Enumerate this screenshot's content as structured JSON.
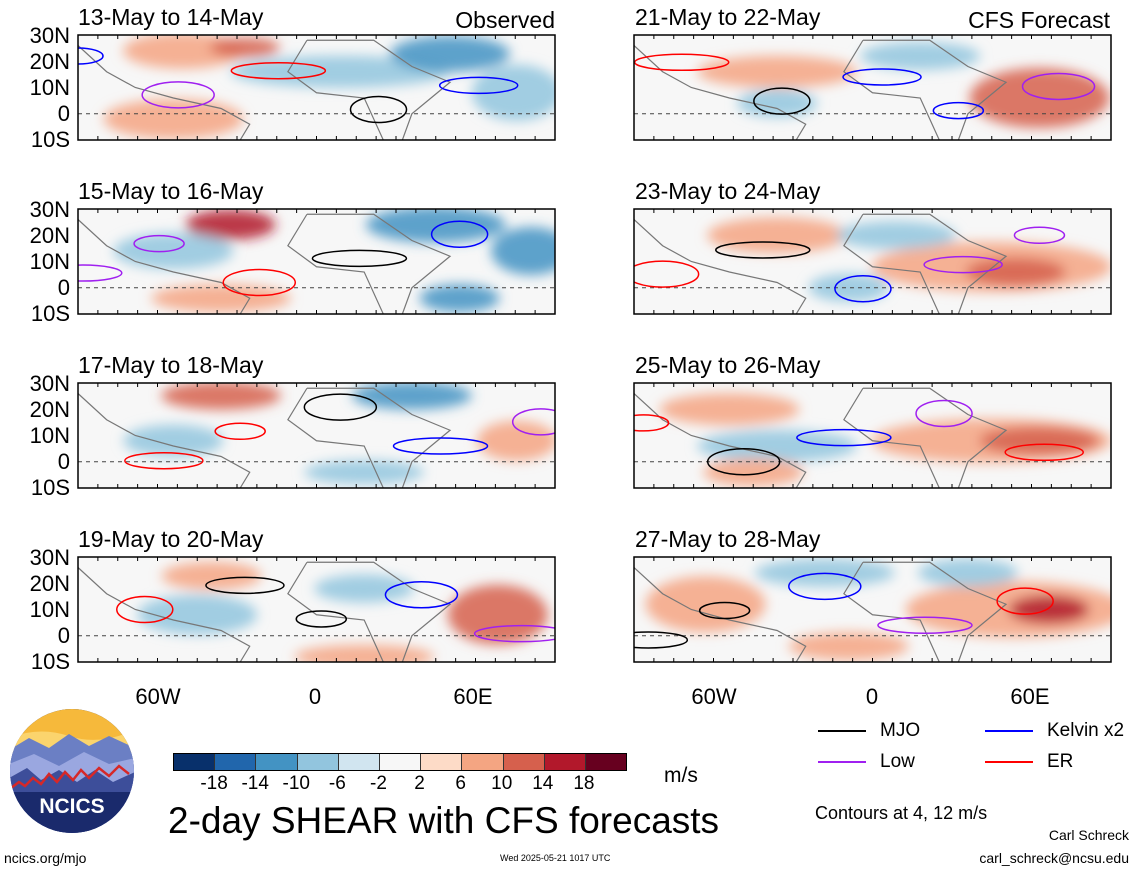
{
  "headers": {
    "left_label": "Observed",
    "right_label": "CFS Forecast"
  },
  "panels_left": [
    {
      "title": "13-May to 14-May"
    },
    {
      "title": "15-May to 16-May"
    },
    {
      "title": "17-May to 18-May"
    },
    {
      "title": "19-May to 20-May"
    }
  ],
  "panels_right": [
    {
      "title": "21-May to 22-May"
    },
    {
      "title": "23-May to 24-May"
    },
    {
      "title": "25-May to 26-May"
    },
    {
      "title": "27-May to 28-May"
    }
  ],
  "lat_labels": [
    "30N",
    "20N",
    "10N",
    "0",
    "10S"
  ],
  "lon_labels": [
    "60W",
    "0",
    "60E"
  ],
  "colorbar": {
    "ticks": [
      "-18",
      "-14",
      "-10",
      "-6",
      "-2",
      "2",
      "6",
      "10",
      "14",
      "18"
    ],
    "colors": [
      "#08306b",
      "#2166ac",
      "#4393c3",
      "#92c5de",
      "#d1e5f0",
      "#f7f7f7",
      "#fddbc7",
      "#f4a582",
      "#d6604d",
      "#b2182b",
      "#67001f"
    ],
    "unit": "m/s"
  },
  "legend": {
    "items": [
      {
        "label": "MJO",
        "color": "#000000"
      },
      {
        "label": "Kelvin x2",
        "color": "#0000ff"
      },
      {
        "label": "Low",
        "color": "#a020f0"
      },
      {
        "label": "ER",
        "color": "#ff0000"
      }
    ],
    "contours_note": "Contours at 4, 12 m/s"
  },
  "main_title": "2-day SHEAR with CFS forecasts",
  "logo_text": "NCICS",
  "footer": {
    "url": "ncics.org/mjo",
    "timestamp": "Wed 2025-05-21 1017 UTC",
    "author": "Carl Schreck",
    "email": "carl_schreck@ncsu.edu"
  }
}
